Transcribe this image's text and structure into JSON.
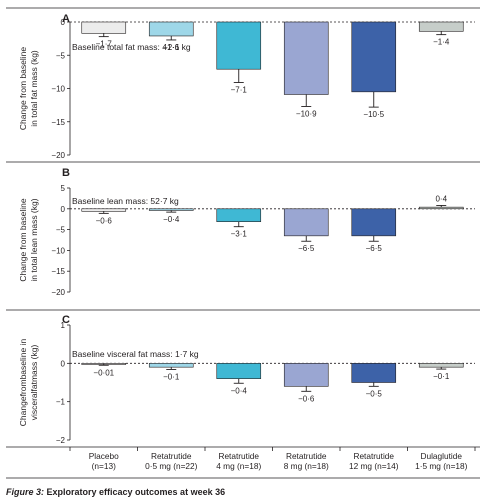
{
  "caption": {
    "prefix": "Figure 3:",
    "text": " Exploratory efficacy outcomes at week 36"
  },
  "colors": {
    "series": [
      "#ececec",
      "#9ed7e8",
      "#3fb8d4",
      "#9aa6d2",
      "#3d62a8",
      "#c6cdc9"
    ]
  },
  "categories": [
    {
      "line1": "Placebo",
      "line2": "(n=13)"
    },
    {
      "line1": "Retatrutide",
      "line2": "0·5 mg (n=22)"
    },
    {
      "line1": "Retatrutide",
      "line2": "4 mg (n=18)"
    },
    {
      "line1": "Retatrutide",
      "line2": "8 mg (n=18)"
    },
    {
      "line1": "Retatrutide",
      "line2": "12 mg (n=14)"
    },
    {
      "line1": "Dulaglutide",
      "line2": "1·5 mg (n=18)"
    }
  ],
  "chart_data": [
    {
      "type": "bar",
      "panel": "A",
      "note": "Baseline total fat mass: 41·6 kg",
      "ylabel_lines": [
        "Change from baseline",
        "in total fat mass (kg)"
      ],
      "ylim": [
        -20,
        0
      ],
      "yticks": [
        0,
        -5,
        -10,
        -15,
        -20
      ],
      "ytick_labels": [
        "0",
        "−5",
        "−10",
        "−15",
        "−20"
      ],
      "values": [
        -1.7,
        -2.1,
        -7.1,
        -10.9,
        -10.5,
        -1.4
      ],
      "value_labels": [
        "−1·7",
        "−2·1",
        "−7·1",
        "−10·9",
        "−10·5",
        "−1·4"
      ],
      "errors": [
        0.5,
        0.6,
        2.0,
        1.8,
        2.3,
        0.5
      ]
    },
    {
      "type": "bar",
      "panel": "B",
      "note": "Baseline lean mass: 52·7 kg",
      "ylabel_lines": [
        "Change from baseline",
        "in total lean mass (kg)"
      ],
      "ylim": [
        -20,
        5
      ],
      "yticks": [
        5,
        0,
        -5,
        -10,
        -15,
        -20
      ],
      "ytick_labels": [
        "5",
        "0",
        "−5",
        "−10",
        "−15",
        "−20"
      ],
      "values": [
        -0.6,
        -0.4,
        -3.1,
        -6.5,
        -6.5,
        0.4
      ],
      "value_labels": [
        "−0·6",
        "−0·4",
        "−3·1",
        "−6·5",
        "−6·5",
        "0·4"
      ],
      "errors": [
        0.5,
        0.4,
        1.2,
        1.3,
        1.3,
        0.4
      ]
    },
    {
      "type": "bar",
      "panel": "C",
      "note": "Baseline visceral fat mass: 1·7 kg",
      "ylabel_lines": [
        "Changefrombaseline in",
        "visceralfatmass (kg)"
      ],
      "ylim": [
        -2,
        1
      ],
      "yticks": [
        1,
        0,
        -1,
        -2
      ],
      "ytick_labels": [
        "1",
        "0",
        "−1",
        "−2"
      ],
      "values": [
        -0.01,
        -0.1,
        -0.4,
        -0.6,
        -0.5,
        -0.1
      ],
      "value_labels": [
        "−0·01",
        "−0·1",
        "−0·4",
        "−0·6",
        "−0·5",
        "−0·1"
      ],
      "errors": [
        0.04,
        0.06,
        0.12,
        0.13,
        0.1,
        0.05
      ]
    }
  ]
}
